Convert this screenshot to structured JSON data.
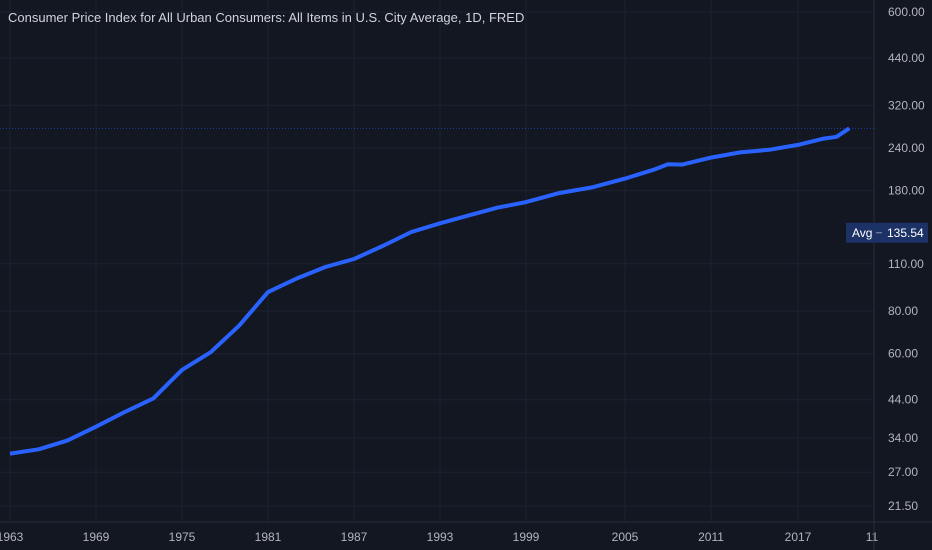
{
  "title": "Consumer Price Index for All Urban Consumers: All Items in U.S. City Average, 1D, FRED",
  "avg_label": "Avg",
  "avg_value": "135.54",
  "colors": {
    "line": "#2962ff",
    "bg": "#131722",
    "grid": "#1e2230",
    "avg_bg": "#1c3166"
  },
  "chart_data": {
    "type": "line",
    "title": "Consumer Price Index for All Urban Consumers: All Items in U.S. City Average, 1D, FRED",
    "yscale": "log",
    "ylim": [
      21.5,
      600
    ],
    "yticks": [
      "600.00",
      "440.00",
      "320.00",
      "240.00",
      "180.00",
      "110.00",
      "80.00",
      "60.00",
      "44.00",
      "34.00",
      "27.00",
      "21.50"
    ],
    "xticks": [
      "1963",
      "1969",
      "1975",
      "1981",
      "1987",
      "1993",
      "1999",
      "2005",
      "2011",
      "2017",
      "11"
    ],
    "average": 135.54,
    "last_value": 274,
    "x": [
      1963,
      1965,
      1967,
      1969,
      1971,
      1973,
      1975,
      1977,
      1979,
      1981,
      1983,
      1985,
      1987,
      1989,
      1991,
      1993,
      1995,
      1997,
      1999,
      2001,
      2003,
      2005,
      2007,
      2008,
      2009,
      2011,
      2013,
      2015,
      2017,
      2019,
      2020,
      2021
    ],
    "y": [
      30.6,
      31.5,
      33.4,
      36.7,
      40.5,
      44.4,
      53.8,
      60.6,
      72.6,
      90.9,
      99.6,
      107.6,
      113.6,
      124.0,
      136.2,
      144.5,
      152.4,
      160.5,
      166.6,
      177.1,
      184.0,
      195.3,
      207.3,
      215.0,
      214.5,
      224.9,
      233.0,
      237.0,
      245.1,
      255.7,
      258.8,
      274.0
    ]
  }
}
